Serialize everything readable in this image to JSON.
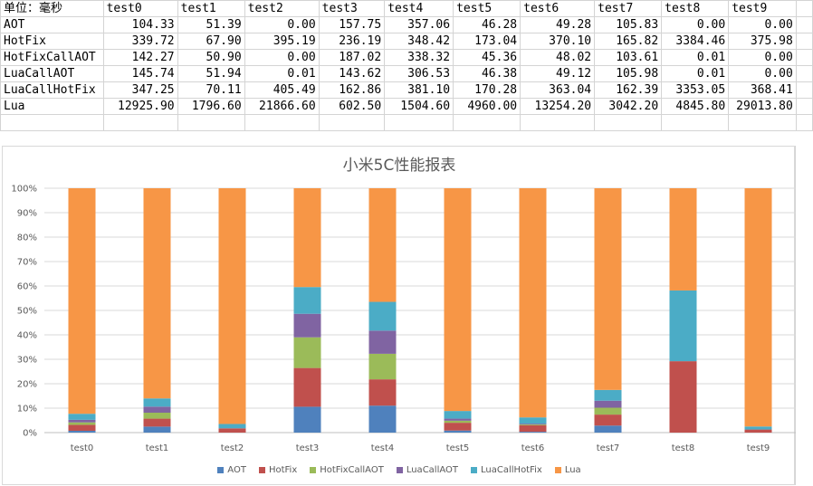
{
  "table": {
    "corner": "单位：毫秒",
    "headers": [
      "test0",
      "test1",
      "test2",
      "test3",
      "test4",
      "test5",
      "test6",
      "test7",
      "test8",
      "test9"
    ],
    "rows": [
      {
        "label": "AOT",
        "cells": [
          "104.33",
          "51.39",
          "0.00",
          "157.75",
          "357.06",
          "46.28",
          "49.28",
          "105.83",
          "0.00",
          "0.00"
        ]
      },
      {
        "label": "HotFix",
        "cells": [
          "339.72",
          "67.90",
          "395.19",
          "236.19",
          "348.42",
          "173.04",
          "370.10",
          "165.82",
          "3384.46",
          "375.98"
        ]
      },
      {
        "label": "HotFixCallAOT",
        "cells": [
          "142.27",
          "50.90",
          "0.00",
          "187.02",
          "338.32",
          "45.36",
          "48.02",
          "103.61",
          "0.01",
          "0.00"
        ]
      },
      {
        "label": "LuaCallAOT",
        "cells": [
          "145.74",
          "51.94",
          "0.01",
          "143.62",
          "306.53",
          "46.38",
          "49.12",
          "105.98",
          "0.01",
          "0.00"
        ]
      },
      {
        "label": "LuaCallHotFix",
        "cells": [
          "347.25",
          "70.11",
          "405.49",
          "162.86",
          "381.10",
          "170.28",
          "363.04",
          "162.39",
          "3353.05",
          "368.41"
        ]
      },
      {
        "label": "Lua",
        "cells": [
          "12925.90",
          "1796.60",
          "21866.60",
          "602.50",
          "1504.60",
          "4960.00",
          "13254.20",
          "3042.20",
          "4845.80",
          "29013.80"
        ]
      }
    ]
  },
  "chart_data": {
    "type": "bar",
    "stacking": "percent",
    "title": "小米5C性能报表",
    "categories": [
      "test0",
      "test1",
      "test2",
      "test3",
      "test4",
      "test5",
      "test6",
      "test7",
      "test8",
      "test9"
    ],
    "y_ticks": [
      "0%",
      "10%",
      "20%",
      "30%",
      "40%",
      "50%",
      "60%",
      "70%",
      "80%",
      "90%",
      "100%"
    ],
    "ylim": [
      0,
      100
    ],
    "grid": true,
    "legend_position": "bottom",
    "series": [
      {
        "name": "AOT",
        "color": "#4f81bd",
        "values": [
          104.33,
          51.39,
          0.0,
          157.75,
          357.06,
          46.28,
          49.28,
          105.83,
          0.0,
          0.0
        ]
      },
      {
        "name": "HotFix",
        "color": "#c0504d",
        "values": [
          339.72,
          67.9,
          395.19,
          236.19,
          348.42,
          173.04,
          370.1,
          165.82,
          3384.46,
          375.98
        ]
      },
      {
        "name": "HotFixCallAOT",
        "color": "#9bbb59",
        "values": [
          142.27,
          50.9,
          0.0,
          187.02,
          338.32,
          45.36,
          48.02,
          103.61,
          0.01,
          0.0
        ]
      },
      {
        "name": "LuaCallAOT",
        "color": "#8064a2",
        "values": [
          145.74,
          51.94,
          0.01,
          143.62,
          306.53,
          46.38,
          49.12,
          105.98,
          0.01,
          0.0
        ]
      },
      {
        "name": "LuaCallHotFix",
        "color": "#4bacc6",
        "values": [
          347.25,
          70.11,
          405.49,
          162.86,
          381.1,
          170.28,
          363.04,
          162.39,
          3353.05,
          368.41
        ]
      },
      {
        "name": "Lua",
        "color": "#f79646",
        "values": [
          12925.9,
          1796.6,
          21866.6,
          602.5,
          1504.6,
          4960.0,
          13254.2,
          3042.2,
          4845.8,
          29013.8
        ]
      }
    ]
  }
}
